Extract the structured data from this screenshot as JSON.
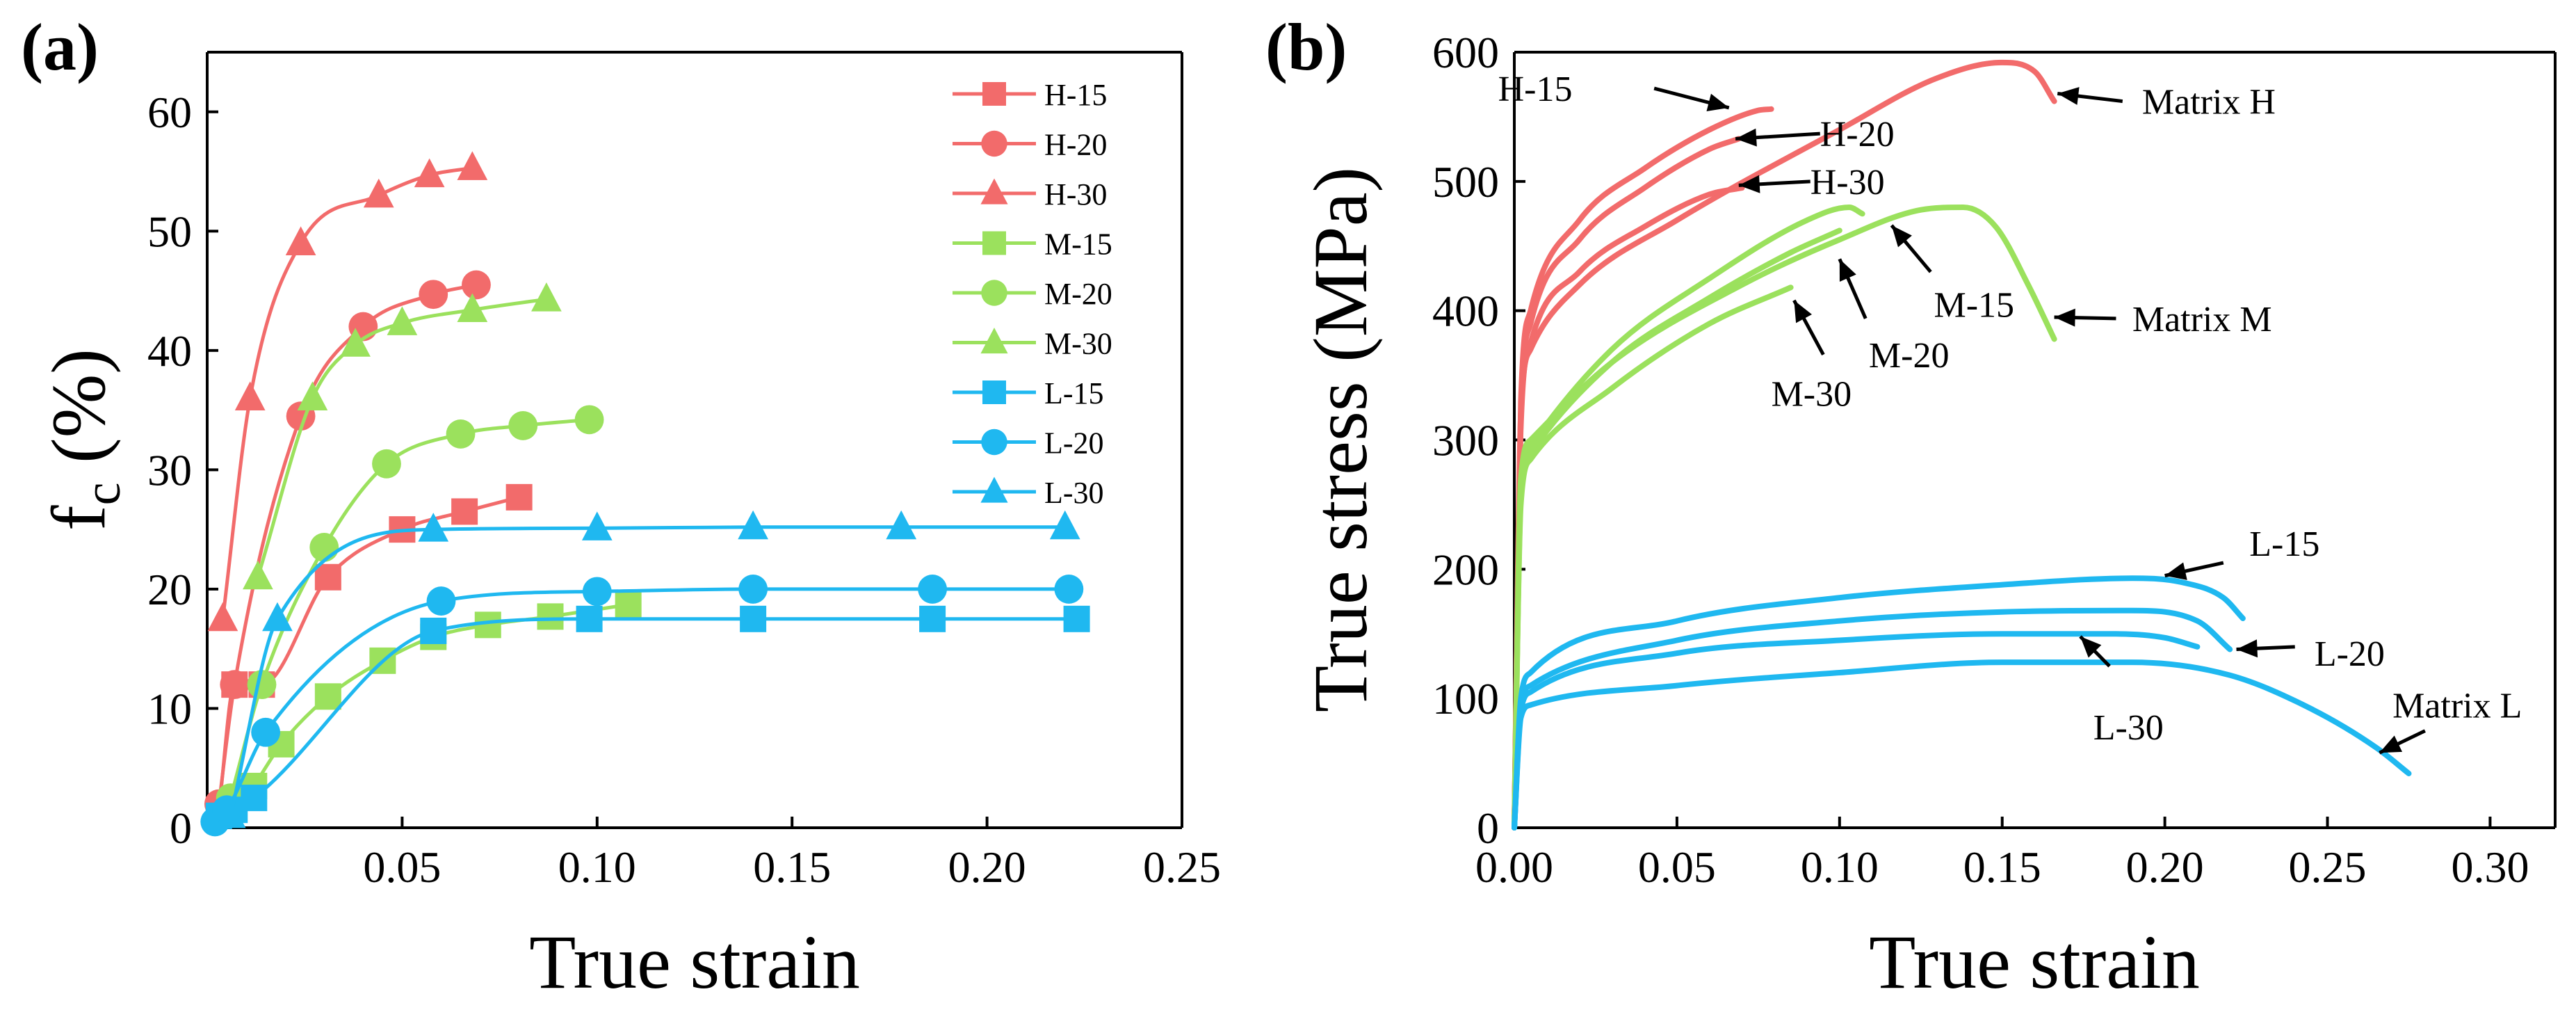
{
  "chart_data": [
    {
      "panel": "(a)",
      "type": "line",
      "xlabel": "True strain",
      "ylabel_main": "f",
      "ylabel_sub": "c",
      "ylabel_tail": " (%)",
      "xlim": [
        0.0,
        0.25
      ],
      "ylim": [
        0,
        65
      ],
      "xticks": [
        0.05,
        0.1,
        0.15,
        0.2,
        0.25
      ],
      "xtick_labels": [
        "0.05",
        "0.10",
        "0.15",
        "0.20",
        "0.25"
      ],
      "yticks": [
        0,
        10,
        20,
        30,
        40,
        50,
        60
      ],
      "ytick_labels": [
        "0",
        "10",
        "20",
        "30",
        "40",
        "50",
        "60"
      ],
      "series": [
        {
          "name": "H-15",
          "color": "#F26B6B",
          "marker": "square",
          "x": [
            0.003,
            0.007,
            0.014,
            0.031,
            0.05,
            0.066,
            0.08
          ],
          "y": [
            1.5,
            12,
            12,
            21,
            25,
            26.5,
            27.7
          ]
        },
        {
          "name": "H-20",
          "color": "#F26B6B",
          "marker": "circle",
          "x": [
            0.003,
            0.007,
            0.024,
            0.04,
            0.058,
            0.069
          ],
          "y": [
            2,
            12,
            34.5,
            42,
            44.7,
            45.5
          ]
        },
        {
          "name": "H-30",
          "color": "#F26B6B",
          "marker": "triangle",
          "x": [
            0.004,
            0.011,
            0.024,
            0.044,
            0.057,
            0.068
          ],
          "y": [
            17.5,
            36,
            49,
            53,
            54.7,
            55.3
          ]
        },
        {
          "name": "M-15",
          "color": "#9BE15D",
          "marker": "square",
          "x": [
            0.012,
            0.019,
            0.031,
            0.045,
            0.058,
            0.072,
            0.088,
            0.108
          ],
          "y": [
            3.5,
            7,
            11,
            14,
            16,
            17,
            17.7,
            18.7
          ]
        },
        {
          "name": "M-20",
          "color": "#9BE15D",
          "marker": "circle",
          "x": [
            0.006,
            0.014,
            0.03,
            0.046,
            0.065,
            0.081,
            0.098
          ],
          "y": [
            2.5,
            12,
            23.5,
            30.5,
            33,
            33.7,
            34.2
          ]
        },
        {
          "name": "M-30",
          "color": "#9BE15D",
          "marker": "triangle",
          "x": [
            0.013,
            0.027,
            0.038,
            0.05,
            0.068,
            0.087
          ],
          "y": [
            21,
            36,
            40.5,
            42.3,
            43.4,
            44.3
          ]
        },
        {
          "name": "L-15",
          "color": "#1FB8F0",
          "marker": "square",
          "x": [
            0.003,
            0.007,
            0.012,
            0.058,
            0.098,
            0.14,
            0.186,
            0.223
          ],
          "y": [
            1,
            1.5,
            2.5,
            16.5,
            17.5,
            17.5,
            17.5,
            17.5
          ]
        },
        {
          "name": "L-20",
          "color": "#1FB8F0",
          "marker": "circle",
          "x": [
            0.002,
            0.005,
            0.015,
            0.06,
            0.1,
            0.14,
            0.186,
            0.221
          ],
          "y": [
            0.5,
            1.5,
            8,
            19,
            19.8,
            20,
            20,
            20
          ]
        },
        {
          "name": "L-30",
          "color": "#1FB8F0",
          "marker": "triangle",
          "x": [
            0.006,
            0.018,
            0.058,
            0.1,
            0.14,
            0.178,
            0.22
          ],
          "y": [
            1,
            17.5,
            25,
            25.1,
            25.2,
            25.2,
            25.2
          ]
        }
      ]
    },
    {
      "panel": "(b)",
      "type": "line",
      "xlabel": "True strain",
      "ylabel": "True stress (MPa)",
      "xlim": [
        0.0,
        0.32
      ],
      "ylim": [
        0,
        600
      ],
      "xticks": [
        0.0,
        0.05,
        0.1,
        0.15,
        0.2,
        0.25,
        0.3
      ],
      "xtick_labels": [
        "0.00",
        "0.05",
        "0.10",
        "0.15",
        "0.20",
        "0.25",
        "0.30"
      ],
      "yticks": [
        0,
        100,
        200,
        300,
        400,
        500,
        600
      ],
      "ytick_labels": [
        "0",
        "100",
        "200",
        "300",
        "400",
        "500",
        "600"
      ],
      "series": [
        {
          "name": "Matrix H",
          "color": "#F26B6B",
          "x": [
            0,
            0.002,
            0.005,
            0.02,
            0.05,
            0.1,
            0.13,
            0.15,
            0.16,
            0.166
          ],
          "y": [
            0,
            320,
            370,
            420,
            470,
            540,
            580,
            592,
            585,
            562
          ]
        },
        {
          "name": "H-15",
          "color": "#F26B6B",
          "x": [
            0,
            0.002,
            0.005,
            0.02,
            0.04,
            0.06,
            0.075,
            0.079
          ],
          "y": [
            0,
            330,
            400,
            470,
            510,
            540,
            555,
            556
          ]
        },
        {
          "name": "H-20",
          "color": "#F26B6B",
          "x": [
            0,
            0.002,
            0.005,
            0.02,
            0.04,
            0.06,
            0.069
          ],
          "y": [
            0,
            320,
            390,
            455,
            495,
            525,
            533
          ]
        },
        {
          "name": "H-30",
          "color": "#F26B6B",
          "x": [
            0,
            0.002,
            0.005,
            0.02,
            0.04,
            0.06,
            0.07
          ],
          "y": [
            0,
            310,
            375,
            430,
            465,
            490,
            495
          ]
        },
        {
          "name": "Matrix M",
          "color": "#9BE15D",
          "x": [
            0,
            0.002,
            0.005,
            0.03,
            0.07,
            0.1,
            0.125,
            0.138,
            0.148,
            0.158,
            0.166
          ],
          "y": [
            0,
            270,
            300,
            360,
            420,
            455,
            478,
            480,
            465,
            420,
            378
          ]
        },
        {
          "name": "M-15",
          "color": "#9BE15D",
          "x": [
            0,
            0.002,
            0.005,
            0.03,
            0.06,
            0.09,
            0.103,
            0.107
          ],
          "y": [
            0,
            260,
            295,
            370,
            425,
            470,
            480,
            475
          ]
        },
        {
          "name": "M-20",
          "color": "#9BE15D",
          "x": [
            0,
            0.002,
            0.005,
            0.03,
            0.06,
            0.085,
            0.1
          ],
          "y": [
            0,
            255,
            290,
            360,
            410,
            445,
            462
          ]
        },
        {
          "name": "M-30",
          "color": "#9BE15D",
          "x": [
            0,
            0.002,
            0.005,
            0.03,
            0.06,
            0.085
          ],
          "y": [
            0,
            250,
            285,
            340,
            390,
            418
          ]
        },
        {
          "name": "Matrix L",
          "color": "#1FB8F0",
          "x": [
            0,
            0.002,
            0.005,
            0.05,
            0.1,
            0.15,
            0.19,
            0.22,
            0.245,
            0.265,
            0.275
          ],
          "y": [
            0,
            85,
            95,
            110,
            120,
            128,
            128,
            118,
            92,
            62,
            42
          ]
        },
        {
          "name": "L-15",
          "color": "#1FB8F0",
          "x": [
            0,
            0.002,
            0.005,
            0.05,
            0.1,
            0.15,
            0.19,
            0.205,
            0.218,
            0.224
          ],
          "y": [
            0,
            100,
            120,
            160,
            178,
            188,
            193,
            190,
            178,
            162
          ]
        },
        {
          "name": "L-20",
          "color": "#1FB8F0",
          "x": [
            0,
            0.002,
            0.005,
            0.05,
            0.1,
            0.15,
            0.19,
            0.21,
            0.22
          ],
          "y": [
            0,
            95,
            110,
            145,
            160,
            167,
            168,
            160,
            138
          ]
        },
        {
          "name": "L-30",
          "color": "#1FB8F0",
          "x": [
            0,
            0.002,
            0.005,
            0.05,
            0.1,
            0.15,
            0.185,
            0.2,
            0.21
          ],
          "y": [
            0,
            90,
            105,
            135,
            145,
            150,
            150,
            147,
            140
          ]
        }
      ],
      "annotations": [
        {
          "text": "H-15",
          "x": -0.005,
          "y": 572
        },
        {
          "text": "H-20",
          "x": 0.094,
          "y": 537
        },
        {
          "text": "H-30",
          "x": 0.091,
          "y": 500
        },
        {
          "text": "Matrix H",
          "x": 0.193,
          "y": 562
        },
        {
          "text": "M-15",
          "x": 0.129,
          "y": 405
        },
        {
          "text": "M-20",
          "x": 0.109,
          "y": 366
        },
        {
          "text": "M-30",
          "x": 0.079,
          "y": 336
        },
        {
          "text": "Matrix M",
          "x": 0.19,
          "y": 394
        },
        {
          "text": "L-15",
          "x": 0.226,
          "y": 220
        },
        {
          "text": "L-20",
          "x": 0.246,
          "y": 135
        },
        {
          "text": "L-30",
          "x": 0.178,
          "y": 78
        },
        {
          "text": "Matrix L",
          "x": 0.27,
          "y": 95
        }
      ],
      "arrows": [
        {
          "from": [
            0.043,
            572
          ],
          "to": [
            0.066,
            557
          ]
        },
        {
          "from": [
            0.094,
            537
          ],
          "to": [
            0.068,
            533
          ]
        },
        {
          "from": [
            0.091,
            500
          ],
          "to": [
            0.069,
            497
          ]
        },
        {
          "from": [
            0.187,
            562
          ],
          "to": [
            0.167,
            568
          ]
        },
        {
          "from": [
            0.128,
            430
          ],
          "to": [
            0.116,
            466
          ]
        },
        {
          "from": [
            0.108,
            394
          ],
          "to": [
            0.1,
            440
          ]
        },
        {
          "from": [
            0.095,
            366
          ],
          "to": [
            0.086,
            408
          ]
        },
        {
          "from": [
            0.185,
            394
          ],
          "to": [
            0.166,
            395
          ]
        },
        {
          "from": [
            0.218,
            205
          ],
          "to": [
            0.2,
            195
          ]
        },
        {
          "from": [
            0.24,
            140
          ],
          "to": [
            0.222,
            138
          ]
        },
        {
          "from": [
            0.183,
            125
          ],
          "to": [
            0.174,
            148
          ]
        },
        {
          "from": [
            0.28,
            75
          ],
          "to": [
            0.266,
            58
          ]
        }
      ]
    }
  ]
}
